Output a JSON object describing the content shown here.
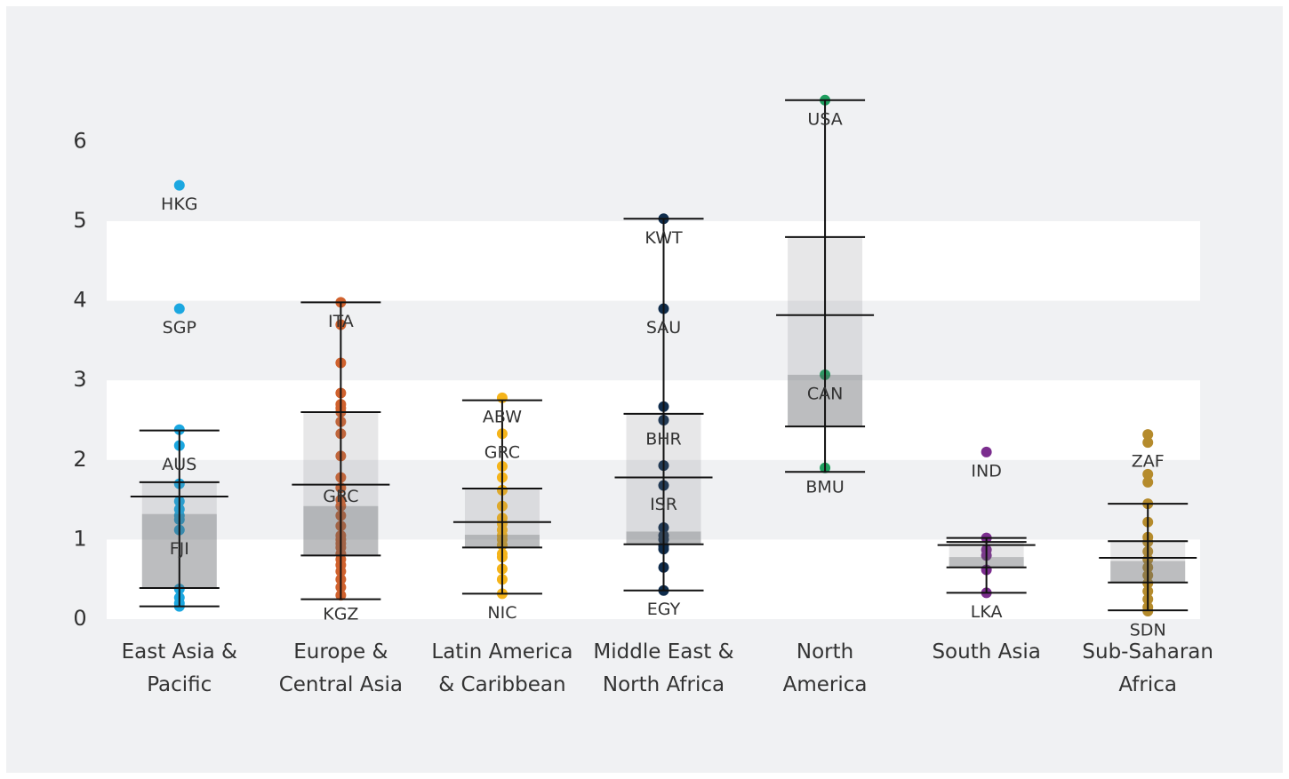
{
  "chart_data": {
    "type": "box",
    "categories": [
      "East Asia &\nPacific",
      "Europe &\nCentral Asia",
      "Latin America\n& Caribbean",
      "Middle East &\nNorth Africa",
      "North\nAmerica",
      "South Asia",
      "Sub-Saharan\nAfrica"
    ],
    "ylim": [
      0,
      6.6
    ],
    "yticks": [
      0,
      1,
      2,
      3,
      4,
      5,
      6
    ],
    "bands": true,
    "series": [
      {
        "color": "#1ba7e0",
        "whislo": 0.16,
        "q1": 0.39,
        "mid": 1.32,
        "med": 1.54,
        "q3": 1.72,
        "whishi": 2.37,
        "points": [
          5.45,
          3.9,
          2.38,
          2.18,
          1.7,
          1.48,
          1.38,
          1.3,
          1.25,
          1.12,
          0.38,
          0.27,
          0.2,
          0.16
        ],
        "point_labels": [
          "HKG",
          "SGP",
          null,
          "AUS",
          null,
          null,
          null,
          null,
          null,
          "FJI",
          null,
          null,
          null,
          null
        ]
      },
      {
        "color": "#d0622e",
        "whislo": 0.25,
        "q1": 0.8,
        "mid": 1.42,
        "med": 1.69,
        "q3": 2.6,
        "whishi": 3.98,
        "points": [
          3.98,
          3.7,
          3.22,
          2.84,
          2.7,
          2.65,
          2.6,
          2.48,
          2.33,
          2.05,
          1.78,
          1.65,
          1.5,
          1.42,
          1.3,
          1.17,
          1.05,
          1.0,
          0.95,
          0.9,
          0.82,
          0.75,
          0.68,
          0.6,
          0.5,
          0.4,
          0.3
        ],
        "point_labels": [
          "ITA",
          null,
          null,
          null,
          null,
          null,
          null,
          null,
          null,
          null,
          "GRC",
          null,
          null,
          null,
          null,
          null,
          null,
          null,
          null,
          null,
          null,
          null,
          null,
          null,
          null,
          null,
          "KGZ"
        ]
      },
      {
        "color": "#f5b41a",
        "whislo": 0.32,
        "q1": 0.9,
        "mid": 1.06,
        "med": 1.22,
        "q3": 1.64,
        "whishi": 2.75,
        "points": [
          2.78,
          2.33,
          1.92,
          1.78,
          1.62,
          1.42,
          1.27,
          1.2,
          1.12,
          1.05,
          1.0,
          0.93,
          0.82,
          0.78,
          0.63,
          0.5,
          0.32
        ],
        "point_labels": [
          "ABW",
          "GRC",
          null,
          null,
          null,
          null,
          null,
          null,
          null,
          null,
          null,
          null,
          null,
          null,
          null,
          null,
          "NIC"
        ]
      },
      {
        "color": "#0f2c4c",
        "whislo": 0.36,
        "q1": 0.94,
        "mid": 1.1,
        "med": 1.78,
        "q3": 2.58,
        "whishi": 5.03,
        "points": [
          5.03,
          3.9,
          2.67,
          2.5,
          1.93,
          1.68,
          1.15,
          1.05,
          1.0,
          0.92,
          0.88,
          0.65,
          0.36
        ],
        "point_labels": [
          "KWT",
          "SAU",
          null,
          "BHR",
          null,
          "ISR",
          null,
          null,
          null,
          null,
          null,
          null,
          "EGY"
        ]
      },
      {
        "color": "#1e9e5e",
        "whislo": 1.85,
        "q1": 2.42,
        "mid": 3.07,
        "med": 3.82,
        "q3": 4.8,
        "whishi": 6.52,
        "points": [
          6.52,
          3.07,
          1.9
        ],
        "point_labels": [
          "USA",
          "CAN",
          "BMU"
        ]
      },
      {
        "color": "#7b2d8e",
        "whislo": 0.33,
        "q1": 0.65,
        "mid": 0.78,
        "med": 0.93,
        "q3": 0.97,
        "whishi": 1.02,
        "points": [
          2.1,
          1.02,
          0.87,
          0.8,
          0.62,
          0.33
        ],
        "point_labels": [
          "IND",
          null,
          null,
          null,
          null,
          "LKA"
        ]
      },
      {
        "color": "#b58b2c",
        "whislo": 0.11,
        "q1": 0.46,
        "mid": 0.73,
        "med": 0.77,
        "q3": 0.98,
        "whishi": 1.45,
        "points": [
          2.32,
          2.22,
          1.82,
          1.72,
          1.45,
          1.22,
          1.03,
          0.97,
          0.85,
          0.75,
          0.65,
          0.55,
          0.45,
          0.35,
          0.25,
          0.15,
          0.1
        ],
        "point_labels": [
          null,
          "ZAF",
          null,
          null,
          null,
          null,
          null,
          null,
          null,
          null,
          null,
          null,
          null,
          null,
          null,
          null,
          "SDN"
        ]
      }
    ]
  }
}
